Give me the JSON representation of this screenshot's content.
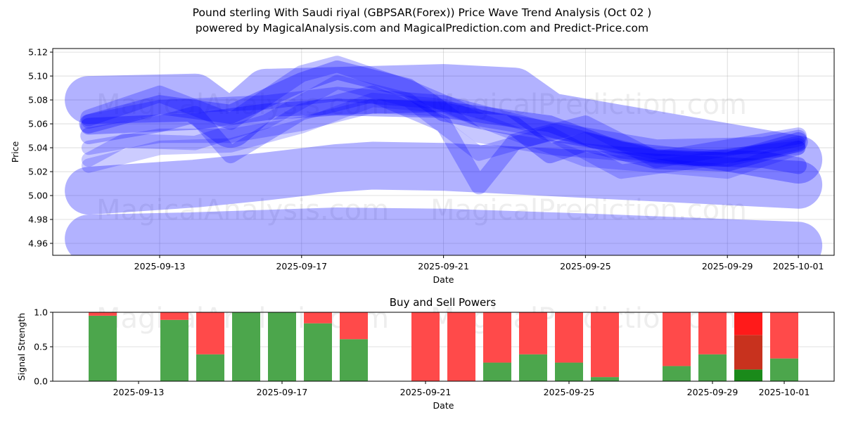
{
  "header": {
    "title": "Pound sterling With Saudi riyal (GBPSAR(Forex)) Price Wave Trend Analysis (Oct 02 )",
    "subtitle": "powered by MagicalAnalysis.com and MagicalPrediction.com and Predict-Price.com"
  },
  "watermarks": [
    "MagicalAnalysis.com",
    "MagicalPrediction.com"
  ],
  "colors": {
    "wave": "#0000ff",
    "buy": "#4ca64c",
    "sell": "#ff4a4a",
    "buy_dark": "#1a8a1a",
    "sell_bright": "#ff1a1a",
    "overlap": "#c8321e"
  },
  "chart_data": [
    {
      "type": "line",
      "title": "",
      "xlabel": "Date",
      "ylabel": "Price",
      "ylim": [
        4.95,
        5.123
      ],
      "xlim": [
        "2025-09-10",
        "2025-10-02"
      ],
      "x_ticks": [
        "2025-09-13",
        "2025-09-17",
        "2025-09-21",
        "2025-09-25",
        "2025-09-29",
        "2025-10-01"
      ],
      "y_ticks": [
        "4.96",
        "4.98",
        "5.00",
        "5.02",
        "5.04",
        "5.06",
        "5.08",
        "5.10",
        "5.12"
      ],
      "grid": true,
      "note": "Each wave is a price path drawn as a translucent band; band = half-width of the band in price units",
      "series": [
        {
          "name": "wave-1",
          "band": 0.02,
          "opacity": 0.3,
          "x": [
            "2025-09-11",
            "2025-09-14",
            "2025-09-15",
            "2025-09-16",
            "2025-09-21",
            "2025-09-23",
            "2025-09-24",
            "2025-10-01"
          ],
          "y": [
            5.08,
            5.082,
            5.06,
            5.086,
            5.09,
            5.087,
            5.066,
            5.03
          ]
        },
        {
          "name": "wave-2",
          "band": 0.02,
          "opacity": 0.3,
          "x": [
            "2025-09-11",
            "2025-09-14",
            "2025-09-16",
            "2025-09-18",
            "2025-09-19",
            "2025-09-21",
            "2025-09-25",
            "2025-10-01"
          ],
          "y": [
            5.004,
            5.01,
            5.016,
            5.023,
            5.025,
            5.024,
            5.018,
            5.009
          ]
        },
        {
          "name": "wave-3",
          "band": 0.02,
          "opacity": 0.3,
          "x": [
            "2025-09-11",
            "2025-09-14",
            "2025-09-16",
            "2025-09-18",
            "2025-09-21",
            "2025-09-25",
            "2025-10-01"
          ],
          "y": [
            4.964,
            4.966,
            4.968,
            4.97,
            4.969,
            4.965,
            4.958
          ]
        },
        {
          "name": "wave-4",
          "band": 0.008,
          "opacity": 0.3,
          "x": [
            "2025-09-11",
            "2025-09-13",
            "2025-09-15",
            "2025-09-17",
            "2025-09-18",
            "2025-09-20",
            "2025-09-21",
            "2025-09-23",
            "2025-09-24",
            "2025-09-25",
            "2025-09-27",
            "2025-09-29",
            "2025-10-01"
          ],
          "y": [
            5.06,
            5.076,
            5.068,
            5.095,
            5.105,
            5.09,
            5.07,
            5.058,
            5.035,
            5.045,
            5.03,
            5.028,
            5.045
          ]
        },
        {
          "name": "wave-5",
          "band": 0.007,
          "opacity": 0.25,
          "x": [
            "2025-09-11",
            "2025-09-13",
            "2025-09-14",
            "2025-09-15",
            "2025-09-17",
            "2025-09-19",
            "2025-09-21",
            "2025-09-22",
            "2025-09-23",
            "2025-09-25",
            "2025-09-27",
            "2025-09-29",
            "2025-10-01"
          ],
          "y": [
            5.05,
            5.06,
            5.068,
            5.034,
            5.07,
            5.085,
            5.06,
            5.008,
            5.045,
            5.06,
            5.03,
            5.04,
            5.05
          ]
        },
        {
          "name": "wave-6",
          "band": 0.007,
          "opacity": 0.25,
          "x": [
            "2025-09-11",
            "2025-09-13",
            "2025-09-15",
            "2025-09-17",
            "2025-09-18",
            "2025-09-20",
            "2025-09-22",
            "2025-09-24",
            "2025-09-25",
            "2025-09-27",
            "2025-09-30",
            "2025-10-01"
          ],
          "y": [
            5.065,
            5.085,
            5.062,
            5.102,
            5.11,
            5.09,
            5.065,
            5.055,
            5.05,
            5.04,
            5.042,
            5.048
          ]
        },
        {
          "name": "wave-7",
          "band": 0.006,
          "opacity": 0.22,
          "x": [
            "2025-09-11",
            "2025-09-13",
            "2025-09-15",
            "2025-09-17",
            "2025-09-19",
            "2025-09-21",
            "2025-09-22",
            "2025-09-24",
            "2025-09-26",
            "2025-09-28",
            "2025-10-01"
          ],
          "y": [
            5.04,
            5.05,
            5.05,
            5.06,
            5.075,
            5.072,
            5.05,
            5.04,
            5.035,
            5.03,
            5.04
          ]
        },
        {
          "name": "wave-8",
          "band": 0.006,
          "opacity": 0.22,
          "x": [
            "2025-09-11",
            "2025-09-12",
            "2025-09-14",
            "2025-09-16",
            "2025-09-18",
            "2025-09-20",
            "2025-09-22",
            "2025-09-24",
            "2025-09-26",
            "2025-09-28",
            "2025-10-01"
          ],
          "y": [
            5.03,
            5.046,
            5.044,
            5.062,
            5.095,
            5.08,
            5.035,
            5.052,
            5.02,
            5.028,
            5.042
          ]
        },
        {
          "name": "wave-9",
          "band": 0.006,
          "opacity": 0.2,
          "x": [
            "2025-09-11",
            "2025-09-13",
            "2025-09-15",
            "2025-09-17",
            "2025-09-19",
            "2025-09-21",
            "2025-09-23",
            "2025-09-25",
            "2025-09-27",
            "2025-09-29",
            "2025-10-01"
          ],
          "y": [
            5.025,
            5.04,
            5.042,
            5.058,
            5.08,
            5.075,
            5.052,
            5.03,
            5.025,
            5.02,
            5.04
          ]
        },
        {
          "name": "wave-10",
          "band": 0.007,
          "opacity": 0.3,
          "x": [
            "2025-09-11",
            "2025-09-14",
            "2025-09-16",
            "2025-09-18",
            "2025-09-21",
            "2025-09-24",
            "2025-09-26",
            "2025-09-28",
            "2025-09-30",
            "2025-10-01"
          ],
          "y": [
            5.058,
            5.062,
            5.07,
            5.074,
            5.072,
            5.06,
            5.038,
            5.032,
            5.03,
            5.025
          ]
        },
        {
          "name": "wave-11",
          "band": 0.006,
          "opacity": 0.25,
          "x": [
            "2025-09-11",
            "2025-09-13",
            "2025-09-16",
            "2025-09-18",
            "2025-09-21",
            "2025-09-24",
            "2025-09-27",
            "2025-09-29",
            "2025-10-01"
          ],
          "y": [
            5.062,
            5.074,
            5.078,
            5.085,
            5.078,
            5.055,
            5.033,
            5.03,
            5.044
          ]
        }
      ]
    },
    {
      "type": "bar",
      "title": "Buy and Sell Powers",
      "xlabel": "Date",
      "ylabel": "Signal Strength",
      "ylim": [
        0.0,
        1.0
      ],
      "x_ticks": [
        "2025-09-13",
        "2025-09-17",
        "2025-09-21",
        "2025-09-25",
        "2025-09-29",
        "2025-10-01"
      ],
      "y_ticks": [
        "0.0",
        "0.5",
        "1.0"
      ],
      "grid": true,
      "stacked": true,
      "categories": [
        "2025-09-12",
        "2025-09-14",
        "2025-09-15",
        "2025-09-16",
        "2025-09-17",
        "2025-09-18",
        "2025-09-19",
        "2025-09-21",
        "2025-09-22",
        "2025-09-23",
        "2025-09-24",
        "2025-09-25",
        "2025-09-26",
        "2025-09-28",
        "2025-09-29",
        "2025-09-30",
        "2025-10-01"
      ],
      "series": [
        {
          "name": "Buy",
          "values": [
            0.95,
            0.89,
            0.39,
            1.0,
            1.0,
            0.84,
            0.61,
            0.0,
            0.0,
            0.27,
            0.39,
            0.27,
            0.06,
            0.22,
            0.39,
            0.17,
            0.33
          ]
        },
        {
          "name": "Sell",
          "values": [
            0.05,
            0.11,
            0.61,
            0.0,
            0.0,
            0.16,
            0.39,
            1.0,
            1.0,
            0.73,
            0.61,
            0.73,
            0.94,
            0.78,
            0.61,
            0.83,
            0.67
          ]
        }
      ],
      "overlay": {
        "date": "2025-09-30",
        "buy": 0.17,
        "sell_overlap_top": 0.67
      }
    }
  ]
}
